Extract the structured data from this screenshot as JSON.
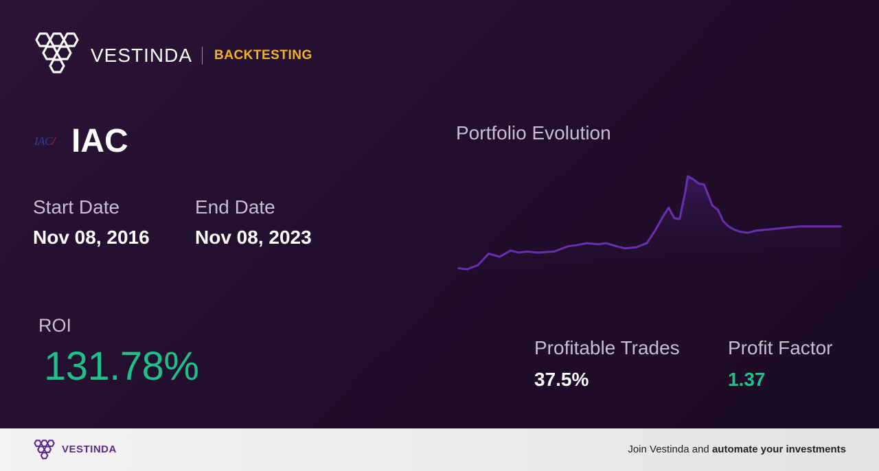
{
  "brand": {
    "name": "VESTINDA",
    "tag": "BACKTESTING"
  },
  "ticker": {
    "logo_text": "IAC",
    "symbol": "IAC"
  },
  "dates": {
    "start_label": "Start Date",
    "start_value": "Nov 08, 2016",
    "end_label": "End Date",
    "end_value": "Nov 08, 2023"
  },
  "roi": {
    "label": "ROI",
    "value": "131.78%"
  },
  "trades": {
    "label": "Profitable Trades",
    "value": "37.5%"
  },
  "profit_factor": {
    "label": "Profit Factor",
    "value": "1.37"
  },
  "chart_data": {
    "type": "line",
    "title": "Portfolio Evolution",
    "xlabel": "",
    "ylabel": "",
    "grid": false,
    "color": "#6a2fb0",
    "x": [
      2016.85,
      2017.0,
      2017.2,
      2017.4,
      2017.6,
      2017.8,
      2017.95,
      2018.1,
      2018.3,
      2018.6,
      2018.85,
      2019.0,
      2019.2,
      2019.4,
      2019.55,
      2019.75,
      2019.9,
      2020.1,
      2020.3,
      2020.45,
      2020.6,
      2020.7,
      2020.8,
      2020.9,
      2021.0,
      2021.05,
      2021.15,
      2021.25,
      2021.35,
      2021.5,
      2021.6,
      2021.7,
      2021.8,
      2021.9,
      2022.0,
      2022.15,
      2022.3,
      2022.5,
      2022.7,
      2022.9,
      2023.1,
      2023.3,
      2023.5,
      2023.7,
      2023.85
    ],
    "values": [
      100,
      99,
      103,
      114,
      111,
      117,
      115,
      116,
      115,
      116,
      121,
      122,
      124,
      123,
      124,
      121,
      119,
      120,
      124,
      136,
      150,
      158,
      148,
      147,
      172,
      188,
      185,
      181,
      180,
      160,
      156,
      145,
      140,
      137,
      135,
      134,
      136,
      137,
      138,
      139,
      140,
      140,
      140,
      140,
      140
    ],
    "ylim": [
      90,
      195
    ],
    "fill_gradient": [
      "#6a2fb0",
      "#1c0b25"
    ]
  },
  "footer": {
    "brand": "VESTINDA",
    "cta_prefix": "Join Vestinda and ",
    "cta_bold": "automate your investments"
  },
  "colors": {
    "accent_gold": "#f0b429",
    "positive": "#1fc08a",
    "brand_purple": "#5b2a86"
  }
}
